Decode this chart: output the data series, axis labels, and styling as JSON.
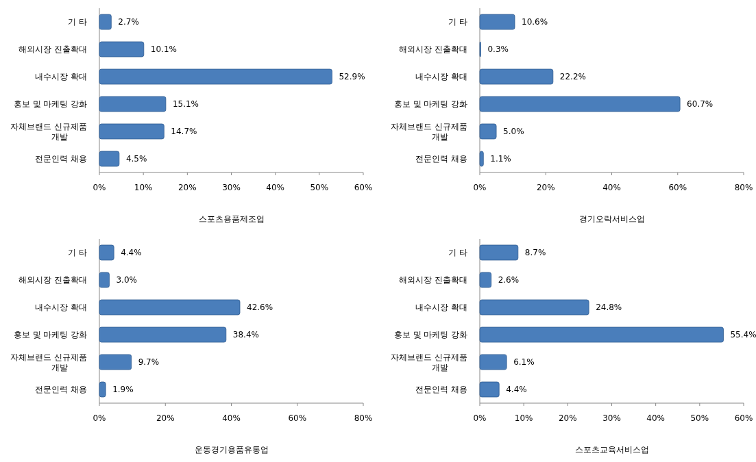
{
  "chart_data": [
    {
      "type": "bar",
      "orientation": "horizontal",
      "xlabel": "스포츠용품제조업",
      "categories": [
        "기 타",
        "해외시장 진출확대",
        "내수시장 확대",
        "홍보 및 마케팅 강화",
        "자체브랜드 신규제품\n개발",
        "전문인력 채용"
      ],
      "values": [
        2.7,
        10.1,
        52.9,
        15.1,
        14.7,
        4.5
      ],
      "value_labels": [
        "2.7%",
        "10.1%",
        "52.9%",
        "15.1%",
        "14.7%",
        "4.5%"
      ],
      "color": "#4a7ebb",
      "xlim": [
        0,
        60
      ],
      "xticks": [
        {
          "value": 0,
          "label": "0%"
        },
        {
          "value": 10,
          "label": "10%"
        },
        {
          "value": 20,
          "label": "20%"
        },
        {
          "value": 30,
          "label": "30%"
        },
        {
          "value": 40,
          "label": "40%"
        },
        {
          "value": 50,
          "label": "50%"
        },
        {
          "value": 60,
          "label": "60%"
        }
      ]
    },
    {
      "type": "bar",
      "orientation": "horizontal",
      "xlabel": "경기오락서비스업",
      "categories": [
        "기 타",
        "해외시장 진출확대",
        "내수시장 확대",
        "홍보 및 마케팅 강화",
        "자체브랜드 신규제품\n개발",
        "전문인력 채용"
      ],
      "values": [
        10.6,
        0.3,
        22.2,
        60.7,
        5.0,
        1.1
      ],
      "value_labels": [
        "10.6%",
        "0.3%",
        "22.2%",
        "60.7%",
        "5.0%",
        "1.1%"
      ],
      "color": "#4a7ebb",
      "xlim": [
        0,
        80
      ],
      "xticks": [
        {
          "value": 0,
          "label": "0%"
        },
        {
          "value": 20,
          "label": "20%"
        },
        {
          "value": 40,
          "label": "40%"
        },
        {
          "value": 60,
          "label": "60%"
        },
        {
          "value": 80,
          "label": "80%"
        }
      ]
    },
    {
      "type": "bar",
      "orientation": "horizontal",
      "xlabel": "운동경기용품유통업",
      "categories": [
        "기 타",
        "해외시장 진출확대",
        "내수시장 확대",
        "홍보 및 마케팅 강화",
        "자체브랜드 신규제품\n개발",
        "전문인력 채용"
      ],
      "values": [
        4.4,
        3.0,
        42.6,
        38.4,
        9.7,
        1.9
      ],
      "value_labels": [
        "4.4%",
        "3.0%",
        "42.6%",
        "38.4%",
        "9.7%",
        "1.9%"
      ],
      "color": "#4a7ebb",
      "xlim": [
        0,
        80
      ],
      "xticks": [
        {
          "value": 0,
          "label": "0%"
        },
        {
          "value": 20,
          "label": "20%"
        },
        {
          "value": 40,
          "label": "40%"
        },
        {
          "value": 60,
          "label": "60%"
        },
        {
          "value": 80,
          "label": "80%"
        }
      ]
    },
    {
      "type": "bar",
      "orientation": "horizontal",
      "xlabel": "스포츠교육서비스업",
      "categories": [
        "기 타",
        "해외시장 진출확대",
        "내수시장 확대",
        "홍보 및 마케팅 강화",
        "자체브랜드 신규제품\n개발",
        "전문인력 채용"
      ],
      "values": [
        8.7,
        2.6,
        24.8,
        55.4,
        6.1,
        4.4
      ],
      "value_labels": [
        "8.7%",
        "2.6%",
        "24.8%",
        "55.4%",
        "6.1%",
        "4.4%"
      ],
      "color": "#4a7ebb",
      "xlim": [
        0,
        60
      ],
      "xticks": [
        {
          "value": 0,
          "label": "0%"
        },
        {
          "value": 10,
          "label": "10%"
        },
        {
          "value": 20,
          "label": "20%"
        },
        {
          "value": 30,
          "label": "30%"
        },
        {
          "value": 40,
          "label": "40%"
        },
        {
          "value": 50,
          "label": "50%"
        },
        {
          "value": 60,
          "label": "60%"
        }
      ]
    }
  ]
}
